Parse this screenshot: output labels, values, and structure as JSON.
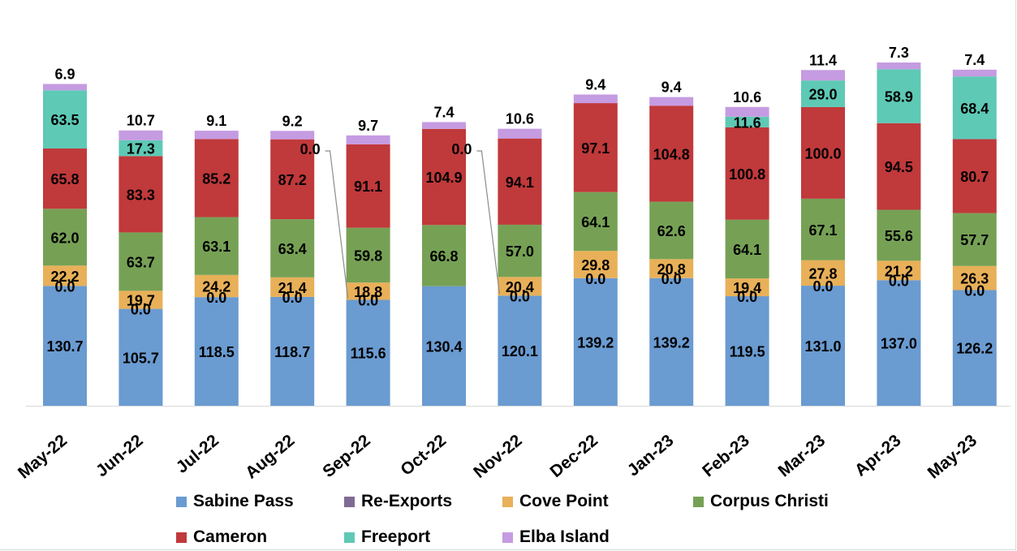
{
  "chart_data": {
    "type": "bar",
    "stacked": true,
    "categories": [
      "May-22",
      "Jun-22",
      "Jul-22",
      "Aug-22",
      "Sep-22",
      "Oct-22",
      "Nov-22",
      "Dec-22",
      "Jan-23",
      "Feb-23",
      "Mar-23",
      "Apr-23",
      "May-23"
    ],
    "series": [
      {
        "name": "Sabine Pass",
        "color": "#6a9bd1",
        "values": [
          130.7,
          105.7,
          118.5,
          118.7,
          115.6,
          130.4,
          120.1,
          139.2,
          139.2,
          119.5,
          131.0,
          137.0,
          126.2
        ],
        "labels": [
          "130.7",
          "105.7",
          "118.5",
          "118.7",
          "115.6",
          "130.4",
          "120.1",
          "139.2",
          "139.2",
          "119.5",
          "131.0",
          "137.0",
          "126.2"
        ]
      },
      {
        "name": "Re-Exports",
        "color": "#7f6a93",
        "values": [
          0,
          0,
          0,
          0,
          0,
          0,
          0,
          0,
          0,
          0,
          0,
          0,
          0
        ],
        "labels": [
          "0.0",
          "0.0",
          "0.0",
          "0.0",
          "0.0",
          "0.0",
          "0.0",
          "0.0",
          "0.0",
          "0.0",
          "0.0",
          "0.0",
          "0.0"
        ]
      },
      {
        "name": "Cove Point",
        "color": "#e8b058",
        "values": [
          22.2,
          19.7,
          24.2,
          21.4,
          18.8,
          0,
          20.4,
          29.8,
          20.8,
          19.4,
          27.8,
          21.2,
          26.3
        ],
        "labels": [
          "22.2",
          "19.7",
          "24.2",
          "21.4",
          "18.8",
          "",
          "20.4",
          "29.8",
          "20.8",
          "19.4",
          "27.8",
          "21.2",
          "26.3"
        ]
      },
      {
        "name": "Corpus Christi",
        "color": "#76a155",
        "values": [
          62.0,
          63.7,
          63.1,
          63.4,
          59.8,
          66.8,
          57.0,
          64.1,
          62.6,
          64.1,
          67.1,
          55.6,
          57.7
        ],
        "labels": [
          "62.0",
          "63.7",
          "63.1",
          "63.4",
          "59.8",
          "66.8",
          "57.0",
          "64.1",
          "62.6",
          "64.1",
          "67.1",
          "55.6",
          "57.7"
        ]
      },
      {
        "name": "Cameron",
        "color": "#c0393b",
        "values": [
          65.8,
          83.3,
          85.2,
          87.2,
          91.1,
          104.9,
          94.1,
          97.1,
          104.8,
          100.8,
          100.0,
          94.5,
          80.7
        ],
        "labels": [
          "65.8",
          "83.3",
          "85.2",
          "87.2",
          "91.1",
          "104.9",
          "94.1",
          "97.1",
          "104.8",
          "100.8",
          "100.0",
          "94.5",
          "80.7"
        ]
      },
      {
        "name": "Freeport",
        "color": "#5ec9b5",
        "values": [
          63.5,
          17.3,
          0,
          0,
          0,
          0,
          0,
          0,
          0,
          11.6,
          29.0,
          58.9,
          68.4
        ],
        "labels": [
          "63.5",
          "17.3",
          "",
          "",
          "",
          "",
          "",
          "",
          "",
          "11.6",
          "29.0",
          "58.9",
          "68.4"
        ]
      },
      {
        "name": "Elba Island",
        "color": "#c59be2",
        "values": [
          6.9,
          10.7,
          9.1,
          9.2,
          9.7,
          7.4,
          10.6,
          9.4,
          9.4,
          10.6,
          11.4,
          7.3,
          7.4
        ],
        "labels": [
          "6.9",
          "10.7",
          "9.1",
          "9.2",
          "9.7",
          "7.4",
          "10.6",
          "9.4",
          "9.4",
          "10.6",
          "11.4",
          "7.3",
          "7.4"
        ]
      }
    ],
    "callouts": [
      {
        "category": "Sep-22",
        "text": "0.0"
      },
      {
        "category": "Nov-22",
        "text": "0.0"
      }
    ],
    "title": "",
    "xlabel": "",
    "ylabel": "",
    "ylim": [
      0,
      425
    ],
    "grid": false,
    "legend_position": "bottom"
  }
}
